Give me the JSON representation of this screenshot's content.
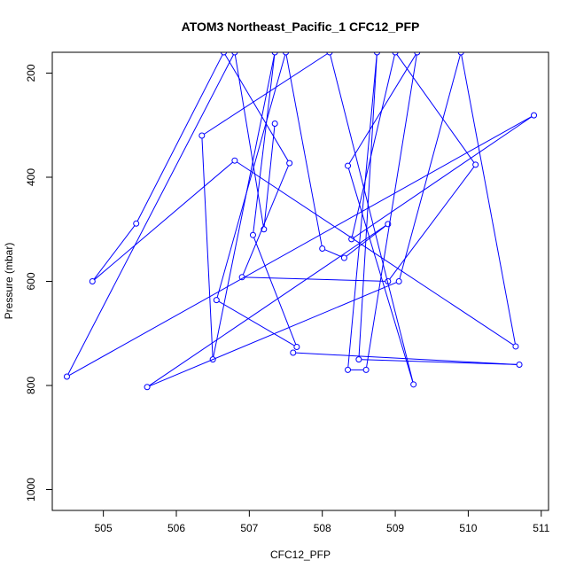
{
  "chart_data": {
    "type": "line",
    "title": "ATOM3 Northeast_Pacific_1 CFC12_PFP",
    "xlabel": "CFC12_PFP",
    "ylabel": "Pressure (mbar)",
    "xlim": [
      504.3,
      511.1
    ],
    "ylim": [
      1040,
      160
    ],
    "y_reversed": true,
    "grid": false,
    "legend": "none",
    "x_ticks": [
      505,
      506,
      507,
      508,
      509,
      510,
      511
    ],
    "y_ticks": [
      200,
      400,
      600,
      800,
      1000
    ],
    "x_tick_labels": [
      "505",
      "506",
      "507",
      "508",
      "509",
      "510",
      "511"
    ],
    "y_tick_labels": [
      "200",
      "400",
      "600",
      "800",
      "1000"
    ],
    "series_color": "#0000FF",
    "marker": "open-circle",
    "points": [
      {
        "x": 507.6,
        "y": 737
      },
      {
        "x": 510.7,
        "y": 760
      },
      {
        "x": 508.5,
        "y": 750
      },
      {
        "x": 508.75,
        "y": 160
      },
      {
        "x": 508.35,
        "y": 770
      },
      {
        "x": 508.6,
        "y": 770
      },
      {
        "x": 509.3,
        "y": 160
      },
      {
        "x": 508.35,
        "y": 378
      },
      {
        "x": 509.25,
        "y": 798
      },
      {
        "x": 508.1,
        "y": 160
      },
      {
        "x": 506.35,
        "y": 320
      },
      {
        "x": 506.5,
        "y": 750
      },
      {
        "x": 507.35,
        "y": 160
      },
      {
        "x": 507.05,
        "y": 511
      },
      {
        "x": 507.65,
        "y": 726
      },
      {
        "x": 506.55,
        "y": 636
      },
      {
        "x": 507.5,
        "y": 160
      },
      {
        "x": 508.0,
        "y": 537
      },
      {
        "x": 508.3,
        "y": 555
      },
      {
        "x": 508.9,
        "y": 490
      },
      {
        "x": 505.6,
        "y": 803
      },
      {
        "x": 509.05,
        "y": 600
      },
      {
        "x": 509.9,
        "y": 160
      },
      {
        "x": 510.65,
        "y": 725
      },
      {
        "x": 506.8,
        "y": 368
      },
      {
        "x": 504.85,
        "y": 600
      },
      {
        "x": 505.45,
        "y": 489
      },
      {
        "x": 506.65,
        "y": 160
      },
      {
        "x": 507.55,
        "y": 373
      },
      {
        "x": 506.9,
        "y": 592
      },
      {
        "x": 508.9,
        "y": 600
      },
      {
        "x": 510.1,
        "y": 376
      },
      {
        "x": 509.0,
        "y": 160
      },
      {
        "x": 508.4,
        "y": 519
      },
      {
        "x": 510.9,
        "y": 281
      },
      {
        "x": 504.5,
        "y": 783
      },
      {
        "x": 506.8,
        "y": 160
      },
      {
        "x": 507.2,
        "y": 500
      },
      {
        "x": 507.35,
        "y": 297
      }
    ]
  }
}
